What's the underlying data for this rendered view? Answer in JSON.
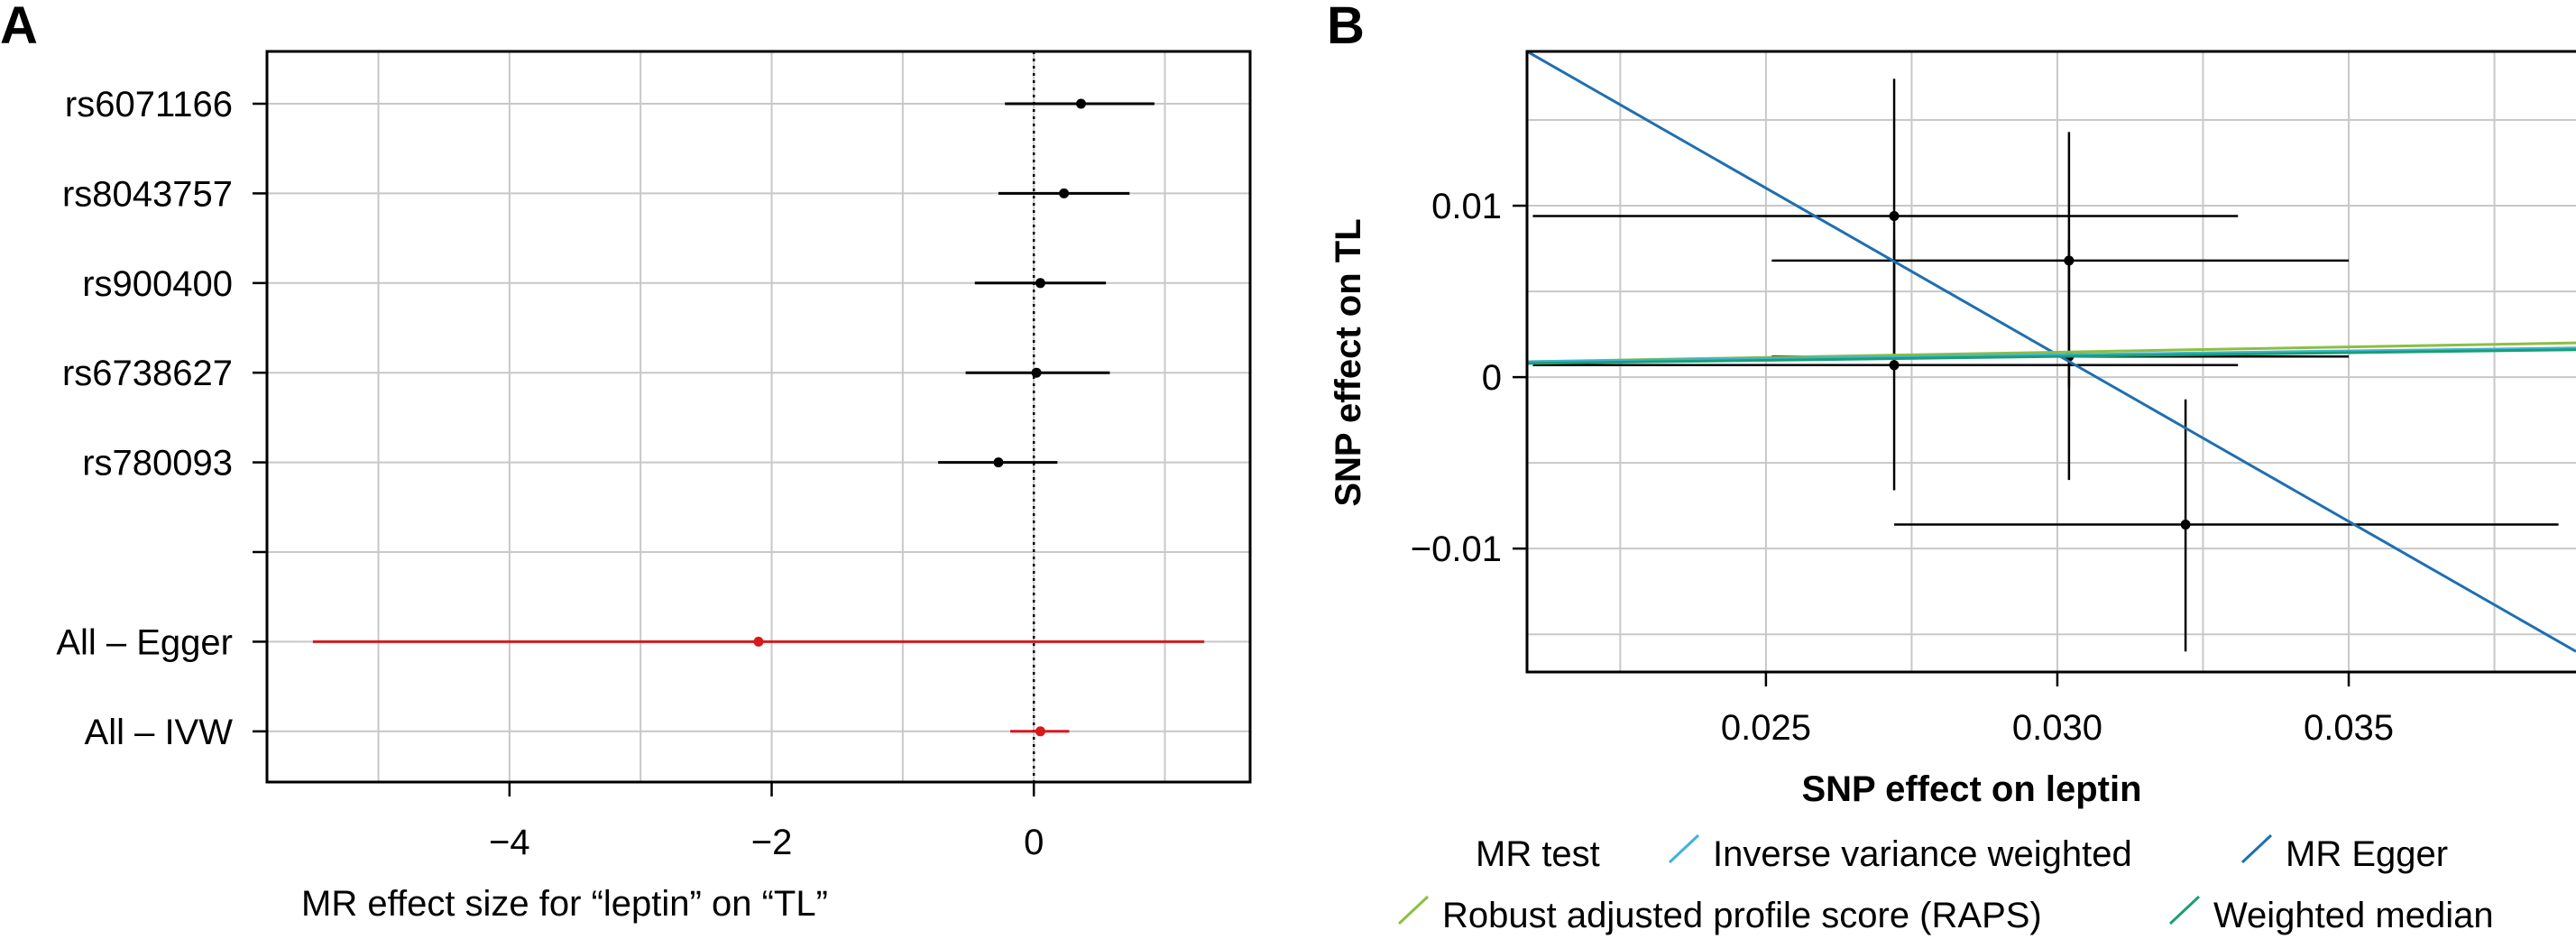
{
  "panels": {
    "a": {
      "letter": "A"
    },
    "b": {
      "letter": "B"
    }
  },
  "chart_data": [
    {
      "type": "forest",
      "panel": "A",
      "xlabel": "MR effect size for “leptin” on “TL”",
      "xlim": [
        -5.85,
        1.65
      ],
      "xticks": [
        -4,
        -2,
        0
      ],
      "xtick_labels": [
        "−4",
        "−2",
        "0"
      ],
      "grid_x": [
        -5,
        -4,
        -3,
        -2,
        -1,
        0,
        1
      ],
      "reference_line": 0,
      "rows": [
        {
          "label": "rs6071166",
          "estimate": 0.36,
          "low": -0.22,
          "high": 0.92,
          "color": "#000000"
        },
        {
          "label": "rs8043757",
          "estimate": 0.23,
          "low": -0.27,
          "high": 0.73,
          "color": "#000000"
        },
        {
          "label": "rs900400",
          "estimate": 0.05,
          "low": -0.45,
          "high": 0.55,
          "color": "#000000"
        },
        {
          "label": "rs6738627",
          "estimate": 0.02,
          "low": -0.52,
          "high": 0.58,
          "color": "#000000"
        },
        {
          "label": "rs780093",
          "estimate": -0.27,
          "low": -0.73,
          "high": 0.18,
          "color": "#000000"
        },
        {
          "label": "",
          "estimate": null,
          "low": null,
          "high": null,
          "color": "#000000"
        },
        {
          "label": "All – Egger",
          "estimate": -2.1,
          "low": -5.5,
          "high": 1.3,
          "color": "#d7191c"
        },
        {
          "label": "All – IVW",
          "estimate": 0.05,
          "low": -0.18,
          "high": 0.27,
          "color": "#d7191c"
        }
      ]
    },
    {
      "type": "scatter",
      "panel": "B",
      "xlabel": "SNP effect on leptin",
      "ylabel": "SNP effect on TL",
      "xlim": [
        0.0209,
        0.0389
      ],
      "ylim": [
        -0.0172,
        0.019
      ],
      "xticks": [
        0.025,
        0.03,
        0.035
      ],
      "xtick_labels": [
        "0.025",
        "0.030",
        "0.035"
      ],
      "yticks": [
        0.01,
        0,
        -0.01
      ],
      "ytick_labels": [
        "0.01",
        "0",
        "−0.01"
      ],
      "grid_x": [
        0.0225,
        0.025,
        0.0275,
        0.03,
        0.0325,
        0.035,
        0.0375
      ],
      "grid_y": [
        -0.015,
        -0.01,
        -0.005,
        0,
        0.005,
        0.01,
        0.015
      ],
      "points": [
        {
          "x": 0.0272,
          "y": 0.0094,
          "x_low": 0.021,
          "x_high": 0.0331,
          "y_low": 0.0174,
          "y_high": 0.001
        },
        {
          "x": 0.0302,
          "y": 0.0068,
          "x_low": 0.0251,
          "x_high": 0.035,
          "y_low": 0.0143,
          "y_high": -0.0006
        },
        {
          "x": 0.0272,
          "y": 0.0007,
          "x_low": 0.021,
          "x_high": 0.0331,
          "y_low": 0.008,
          "y_high": -0.0066
        },
        {
          "x": 0.0302,
          "y": 0.0012,
          "x_low": 0.0251,
          "x_high": 0.035,
          "y_low": 0.008,
          "y_high": -0.006
        },
        {
          "x": 0.0322,
          "y": -0.0086,
          "x_low": 0.0272,
          "x_high": 0.0386,
          "y_low": -0.0013,
          "y_high": -0.016
        }
      ],
      "lines": [
        {
          "name": "MR Egger",
          "color": "#1f6fb0",
          "x0": 0.0209,
          "y0": 0.019,
          "x1": 0.0389,
          "y1": -0.016
        },
        {
          "name": "Robust adjusted profile score (RAPS)",
          "color": "#8cbf3f",
          "x0": 0.0209,
          "y0": 0.0009,
          "x1": 0.0389,
          "y1": 0.002
        },
        {
          "name": "Inverse variance weighted",
          "color": "#3fb3d9",
          "x0": 0.0209,
          "y0": 0.0009,
          "x1": 0.0389,
          "y1": 0.0017
        },
        {
          "name": "Weighted median",
          "color": "#1a9e77",
          "x0": 0.0209,
          "y0": 0.0008,
          "x1": 0.0389,
          "y1": 0.0016
        }
      ],
      "legend": {
        "title": "MR test",
        "position": "bottom",
        "items": [
          {
            "label": "Inverse variance weighted",
            "color": "#3fb3d9"
          },
          {
            "label": "MR Egger",
            "color": "#1f6fb0"
          },
          {
            "label": "Robust adjusted profile score (RAPS)",
            "color": "#8cbf3f"
          },
          {
            "label": "Weighted median",
            "color": "#1a9e77"
          }
        ]
      }
    }
  ]
}
